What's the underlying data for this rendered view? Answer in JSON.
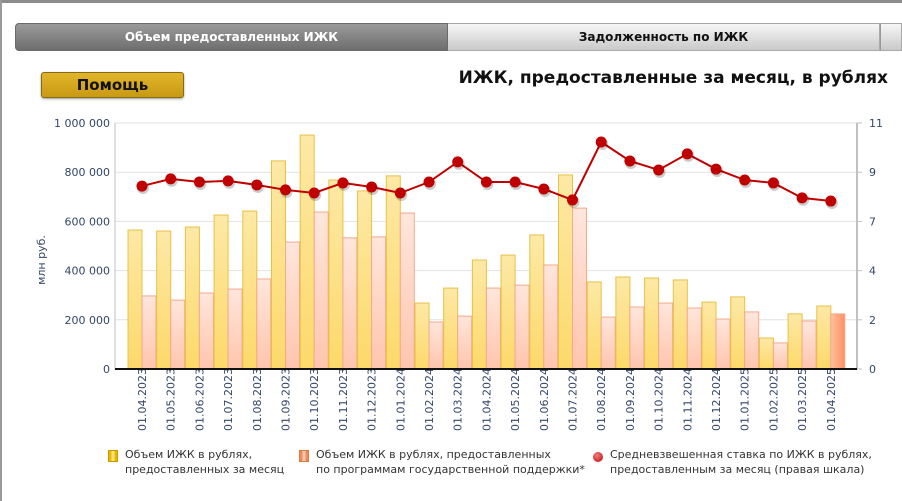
{
  "tabs": [
    {
      "label": "Объем предоставленных ИЖК",
      "active": true
    },
    {
      "label": "Задолженность по ИЖК",
      "active": false
    }
  ],
  "help_button": {
    "label": "Помощь"
  },
  "chart_title": "ИЖК, предоставленные за месяц, в рублях",
  "colors": {
    "total_bar": "#fde08a",
    "total_bar_border": "#e8c046",
    "support_bar": "#ffd6c8",
    "support_bar_border": "#f4a98a",
    "support_bar_highlight": "#ff9e6e",
    "rate_line": "#c00000",
    "axis_text": "#34466a"
  },
  "chart_data": {
    "type": "bar",
    "title": "ИЖК, предоставленные за месяц, в рублях",
    "ylabel": "млн руб.",
    "ylim": [
      0,
      1000000
    ],
    "y_ticks": [
      "0",
      "200 000",
      "400 000",
      "600 000",
      "800 000",
      "1 000 000"
    ],
    "y2lim": [
      0,
      11
    ],
    "y2_ticks": [
      "0",
      "2",
      "4",
      "7",
      "9",
      "11"
    ],
    "grid": true,
    "legend_position": "bottom",
    "categories": [
      "01.04.2023",
      "01.05.2023",
      "01.06.2023",
      "01.07.2023",
      "01.08.2023",
      "01.09.2023",
      "01.10.2023",
      "01.11.2023",
      "01.12.2023",
      "01.01.2024",
      "01.02.2024",
      "01.03.2024",
      "01.04.2024",
      "01.05.2024",
      "01.06.2024",
      "01.07.2024",
      "01.08.2024",
      "01.09.2024",
      "01.10.2024",
      "01.11.2024",
      "01.12.2024",
      "01.01.2025",
      "01.02.2025",
      "01.03.2025",
      "01.04.2025"
    ],
    "series": [
      {
        "name": "Объем ИЖК в рублях, предоставленных за месяц",
        "type": "bar",
        "axis": "left",
        "values": [
          565000,
          561000,
          577000,
          626000,
          642000,
          846000,
          951000,
          768000,
          724000,
          785000,
          268000,
          329000,
          443000,
          463000,
          545000,
          789000,
          354000,
          374000,
          370000,
          362000,
          272000,
          293000,
          126000,
          224000,
          256000
        ]
      },
      {
        "name": "Объем ИЖК в рублях, предоставленных по программам государственной поддержки*",
        "type": "bar",
        "axis": "left",
        "values": [
          297000,
          280000,
          309000,
          325000,
          366000,
          516000,
          638000,
          533000,
          537000,
          634000,
          191000,
          215000,
          329000,
          341000,
          423000,
          654000,
          211000,
          252000,
          268000,
          248000,
          203000,
          232000,
          106000,
          195000,
          224000
        ]
      },
      {
        "name": "Средневзвешенная ставка по ИЖК в рублях, предоставленным за месяц (правая шкала)",
        "type": "line",
        "axis": "right",
        "values": [
          8.18,
          8.5,
          8.36,
          8.41,
          8.23,
          8.01,
          7.87,
          8.32,
          8.14,
          7.87,
          8.36,
          9.26,
          8.36,
          8.36,
          8.05,
          7.56,
          10.15,
          9.3,
          8.9,
          9.62,
          8.94,
          8.45,
          8.32,
          7.65,
          7.51
        ]
      }
    ]
  },
  "legend": [
    {
      "line1": "Объем ИЖК в рублях,",
      "line2": "предоставленных за месяц"
    },
    {
      "line1": "Объем ИЖК в рублях, предоставленных",
      "line2": "по программам государственной поддержки*"
    },
    {
      "line1": "Средневзвешенная ставка по ИЖК в рублях,",
      "line2": "предоставленным за месяц (правая шкала)"
    }
  ]
}
